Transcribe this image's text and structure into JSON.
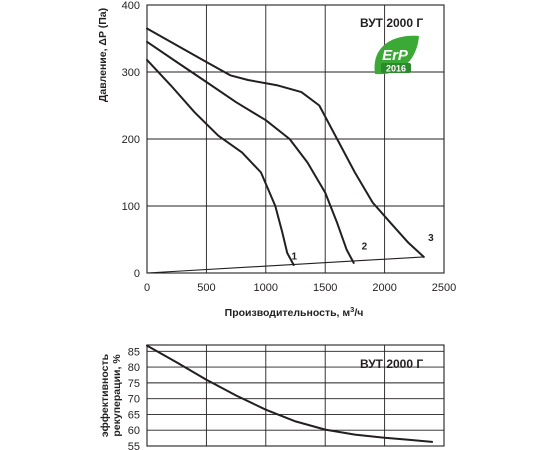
{
  "chart_data": [
    {
      "type": "line",
      "title": "ВУТ 2000 Г",
      "xlabel": "Производительность, м³/ч",
      "ylabel": "Давление, ΔP (Па)",
      "xlim": [
        0,
        2500
      ],
      "ylim": [
        0,
        400
      ],
      "x_ticks": [
        "0",
        "500",
        "1000",
        "1500",
        "2000",
        "2500"
      ],
      "y_ticks": [
        "0",
        "100",
        "200",
        "300",
        "400"
      ],
      "grid": true,
      "series": [
        {
          "name": "1",
          "points": [
            [
              0,
              318
            ],
            [
              200,
              280
            ],
            [
              400,
              240
            ],
            [
              600,
              205
            ],
            [
              800,
              180
            ],
            [
              960,
              150
            ],
            [
              1080,
              100
            ],
            [
              1140,
              60
            ],
            [
              1180,
              30
            ],
            [
              1235,
              12
            ]
          ]
        },
        {
          "name": "2",
          "points": [
            [
              0,
              345
            ],
            [
              250,
              315
            ],
            [
              500,
              285
            ],
            [
              750,
              255
            ],
            [
              1000,
              228
            ],
            [
              1200,
              200
            ],
            [
              1350,
              165
            ],
            [
              1500,
              120
            ],
            [
              1600,
              75
            ],
            [
              1680,
              35
            ],
            [
              1740,
              15
            ]
          ]
        },
        {
          "name": "3",
          "points": [
            [
              0,
              365
            ],
            [
              250,
              340
            ],
            [
              500,
              315
            ],
            [
              700,
              295
            ],
            [
              850,
              288
            ],
            [
              1100,
              280
            ],
            [
              1300,
              270
            ],
            [
              1450,
              250
            ],
            [
              1600,
              200
            ],
            [
              1750,
              150
            ],
            [
              1900,
              105
            ],
            [
              2050,
              75
            ],
            [
              2200,
              45
            ],
            [
              2330,
              24
            ]
          ]
        },
        {
          "name": "",
          "points": [
            [
              0,
              0
            ],
            [
              2330,
              24
            ]
          ]
        }
      ],
      "curve_labels": [
        {
          "text": "1",
          "x": 1240,
          "y": 20
        },
        {
          "text": "2",
          "x": 1830,
          "y": 35
        },
        {
          "text": "3",
          "x": 2390,
          "y": 48
        }
      ],
      "badge": {
        "main": "ErP",
        "year": "2016",
        "color": "#3aa935"
      }
    },
    {
      "type": "line",
      "title": "ВУТ 2000 Г",
      "xlabel": "",
      "ylabel": "эффективность рекуперации, %",
      "xlim": [
        0,
        2500
      ],
      "ylim": [
        55,
        87
      ],
      "y_ticks": [
        "55",
        "60",
        "65",
        "70",
        "75",
        "80",
        "85"
      ],
      "grid": true,
      "series": [
        {
          "name": "",
          "points": [
            [
              0,
              86.8
            ],
            [
              250,
              81.5
            ],
            [
              500,
              76
            ],
            [
              750,
              71
            ],
            [
              1000,
              66.5
            ],
            [
              1250,
              62.8
            ],
            [
              1500,
              60.2
            ],
            [
              1750,
              58.6
            ],
            [
              2000,
              57.6
            ],
            [
              2200,
              57
            ],
            [
              2400,
              56.3
            ]
          ]
        }
      ]
    }
  ]
}
